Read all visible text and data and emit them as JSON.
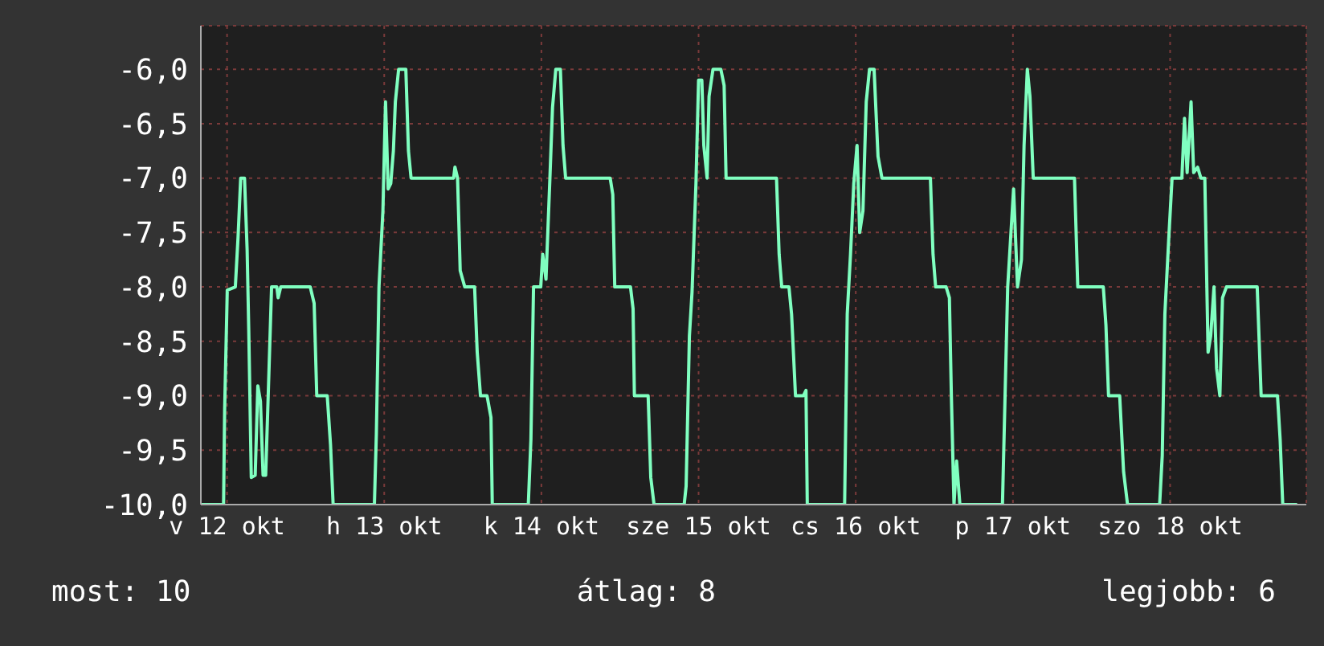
{
  "chart_data": {
    "type": "line",
    "color": "#80ffc0",
    "xlim": [
      "--10-12T02:30",
      "--10-19T03:18"
    ],
    "ylim": [
      -10,
      -5.6
    ],
    "xticks": [
      {
        "value": "--10-12T06:30",
        "label": "v 12 okt"
      },
      {
        "value": "--10-13T06:30",
        "label": "h 13 okt"
      },
      {
        "value": "--10-14T06:30",
        "label": "k 14 okt"
      },
      {
        "value": "--10-15T06:30",
        "label": "sze 15 okt"
      },
      {
        "value": "--10-16T06:30",
        "label": "cs 16 okt"
      },
      {
        "value": "--10-17T06:30",
        "label": "p 17 okt"
      },
      {
        "value": "--10-18T06:30",
        "label": "szo 18 okt"
      }
    ],
    "yticks": [
      {
        "value": -10,
        "label": "-10,0"
      },
      {
        "value": -9.5,
        "label": "-9,5"
      },
      {
        "value": -9,
        "label": "-9,0"
      },
      {
        "value": -8.5,
        "label": "-8,5"
      },
      {
        "value": -8,
        "label": "-8,0"
      },
      {
        "value": -7.5,
        "label": "-7,5"
      },
      {
        "value": -7,
        "label": "-7,0"
      },
      {
        "value": -6.5,
        "label": "-6,5"
      },
      {
        "value": -6,
        "label": "-6,0"
      }
    ],
    "grid": true,
    "legend": false,
    "marker": "none",
    "line_style": "solid",
    "x": [
      "--10-12T02:30",
      "--10-12T05:58",
      "--10-12T06:08",
      "--10-12T06:32",
      "--10-12T07:46",
      "--10-12T08:11",
      "--10-12T08:35",
      "--10-12T09:10",
      "--10-12T09:34",
      "--10-12T09:49",
      "--10-12T10:12",
      "--10-12T10:48",
      "--10-12T11:12",
      "--10-12T11:36",
      "--10-12T12:00",
      "--10-12T12:24",
      "--10-12T12:48",
      "--10-12T13:18",
      "--10-12T14:06",
      "--10-12T14:18",
      "--10-12T14:42",
      "--10-12T19:12",
      "--10-12T19:48",
      "--10-12T20:12",
      "--10-12T21:48",
      "--10-12T22:18",
      "--10-12T22:42",
      "--10-13T05:00",
      "--10-13T05:18",
      "--10-13T05:42",
      "--10-13T06:18",
      "--10-13T06:42",
      "--10-13T07:06",
      "--10-13T07:30",
      "--10-13T07:54",
      "--10-13T08:12",
      "--10-13T08:42",
      "--10-13T09:48",
      "--10-13T10:12",
      "--10-13T10:36",
      "--10-13T17:06",
      "--10-13T17:18",
      "--10-13T17:42",
      "--10-13T18:06",
      "--10-13T18:48",
      "--10-13T20:18",
      "--10-13T20:42",
      "--10-13T21:12",
      "--10-13T22:12",
      "--10-13T22:48",
      "--10-13T23:00",
      "--10-14T04:30",
      "--10-14T04:54",
      "--10-14T05:18",
      "--10-14T06:24",
      "--10-14T06:42",
      "--10-14T07:12",
      "--10-14T07:48",
      "--10-14T08:12",
      "--10-14T08:42",
      "--10-14T09:24",
      "--10-14T09:48",
      "--10-14T10:12",
      "--10-14T17:00",
      "--10-14T17:24",
      "--10-14T17:42",
      "--10-14T20:06",
      "--10-14T20:30",
      "--10-14T20:42",
      "--10-14T22:48",
      "--10-14T23:12",
      "--10-14T23:42",
      "--10-15T04:18",
      "--10-15T04:36",
      "--10-15T05:06",
      "--10-15T05:30",
      "--10-15T06:06",
      "--10-15T06:30",
      "--10-15T07:00",
      "--10-15T07:18",
      "--10-15T07:48",
      "--10-15T08:06",
      "--10-15T08:42",
      "--10-15T09:54",
      "--10-15T10:24",
      "--10-15T10:42",
      "--10-15T18:24",
      "--10-15T18:48",
      "--10-15T19:12",
      "--10-15T20:18",
      "--10-15T20:42",
      "--10-15T21:18",
      "--10-15T22:30",
      "--10-15T22:54",
      "--10-15T23:06",
      "--10-16T04:48",
      "--10-16T05:12",
      "--10-16T05:42",
      "--10-16T06:12",
      "--10-16T06:42",
      "--10-16T07:06",
      "--10-16T07:36",
      "--10-16T08:06",
      "--10-16T08:36",
      "--10-16T09:18",
      "--10-16T09:54",
      "--10-16T10:30",
      "--10-16T17:54",
      "--10-16T18:18",
      "--10-16T18:42",
      "--10-16T20:18",
      "--10-16T20:48",
      "--10-16T21:06",
      "--10-16T21:30",
      "--10-16T21:54",
      "--10-16T22:24",
      "--10-17T04:54",
      "--10-17T05:18",
      "--10-17T05:42",
      "--10-17T06:12",
      "--10-17T06:36",
      "--10-17T07:12",
      "--10-17T07:48",
      "--10-17T08:12",
      "--10-17T08:42",
      "--10-17T09:06",
      "--10-17T09:36",
      "--10-17T15:54",
      "--10-17T16:24",
      "--10-17T20:18",
      "--10-17T20:42",
      "--10-17T21:06",
      "--10-17T22:48",
      "--10-17T23:24",
      "--10-18T00:00",
      "--10-18T04:54",
      "--10-18T05:18",
      "--10-18T05:42",
      "--10-18T06:18",
      "--10-18T06:48",
      "--10-18T08:18",
      "--10-18T08:42",
      "--10-18T09:06",
      "--10-18T09:42",
      "--10-18T10:06",
      "--10-18T10:42",
      "--10-18T11:12",
      "--10-18T11:48",
      "--10-18T12:18",
      "--10-18T12:42",
      "--10-18T13:12",
      "--10-18T13:36",
      "--10-18T14:06",
      "--10-18T14:30",
      "--10-18T15:06",
      "--10-18T19:48",
      "--10-18T20:24",
      "--10-18T22:54",
      "--10-18T23:18",
      "--10-18T23:42",
      "--10-19T01:54"
    ],
    "values": [
      -10,
      -10,
      -9.13,
      -8.03,
      -8.0,
      -7.54,
      -7.0,
      -7.0,
      -7.66,
      -8.4,
      -9.75,
      -9.73,
      -8.91,
      -9.05,
      -9.73,
      -9.73,
      -8.97,
      -8.0,
      -8.0,
      -8.1,
      -8.0,
      -8.0,
      -8.15,
      -9.0,
      -9.0,
      -9.45,
      -10,
      -10,
      -9.35,
      -8.0,
      -7.3,
      -6.3,
      -7.1,
      -7.05,
      -6.75,
      -6.3,
      -6.0,
      -6.0,
      -6.75,
      -7.0,
      -7.0,
      -6.9,
      -7.0,
      -7.85,
      -8.0,
      -8.0,
      -8.6,
      -9.0,
      -9.0,
      -9.2,
      -10,
      -10,
      -9.4,
      -8.0,
      -8.0,
      -7.7,
      -7.93,
      -7.0,
      -6.35,
      -6.0,
      -6.0,
      -6.7,
      -7.0,
      -7.0,
      -7.15,
      -8.0,
      -8.0,
      -8.2,
      -9.0,
      -9.0,
      -9.75,
      -10,
      -10,
      -9.83,
      -8.45,
      -8.05,
      -7.05,
      -6.1,
      -6.1,
      -6.7,
      -7.0,
      -6.25,
      -6.0,
      -6.0,
      -6.15,
      -7.0,
      -7.0,
      -7.7,
      -8.0,
      -8.0,
      -8.25,
      -9.0,
      -9.0,
      -8.95,
      -10,
      -10,
      -8.25,
      -7.7,
      -7.05,
      -6.7,
      -7.5,
      -7.3,
      -6.3,
      -6.0,
      -6.0,
      -6.8,
      -7.0,
      -7.0,
      -7.7,
      -8.0,
      -8.0,
      -8.1,
      -9.0,
      -10,
      -9.6,
      -10,
      -10,
      -9.0,
      -8.0,
      -7.5,
      -7.1,
      -8.0,
      -7.75,
      -6.7,
      -6.0,
      -6.25,
      -7.0,
      -7.0,
      -8.0,
      -8.0,
      -8.35,
      -9.0,
      -9.0,
      -9.7,
      -10,
      -10,
      -9.55,
      -8.25,
      -7.55,
      -7.0,
      -7.0,
      -6.45,
      -6.95,
      -6.3,
      -6.95,
      -6.9,
      -7.0,
      -7.0,
      -8.6,
      -8.45,
      -8.0,
      -8.75,
      -9.0,
      -8.1,
      -8.0,
      -8.0,
      -9.0,
      -9.0,
      -9.4,
      -10,
      -10
    ],
    "annotations": [
      "most: 10",
      "átlag: 8",
      "legjobb: 6"
    ]
  }
}
